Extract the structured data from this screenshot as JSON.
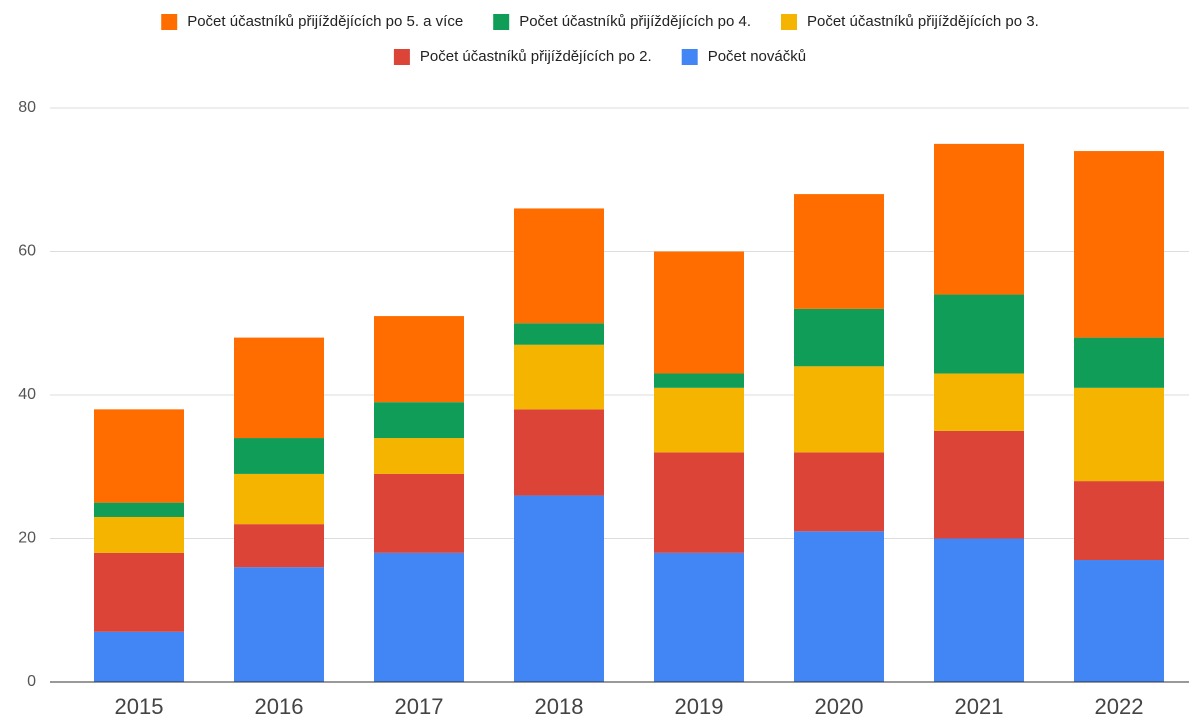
{
  "chart_data": {
    "type": "stacked_bar",
    "categories": [
      "2015",
      "2016",
      "2017",
      "2018",
      "2019",
      "2020",
      "2021",
      "2022"
    ],
    "series": [
      {
        "name": "Počet účastníků přijíždějících po 5. a více",
        "color": "#ff6d01",
        "values": [
          13,
          14,
          12,
          16,
          17,
          16,
          21,
          26
        ]
      },
      {
        "name": "Počet účastníků přijíždějících po 4.",
        "color": "#0f9d58",
        "values": [
          2,
          5,
          5,
          3,
          2,
          8,
          11,
          7
        ]
      },
      {
        "name": "Počet účastníků přijíždějících po 3.",
        "color": "#f4b400",
        "values": [
          5,
          7,
          5,
          9,
          9,
          12,
          8,
          13
        ]
      },
      {
        "name": "Počet účastníků přijíždějících po 2.",
        "color": "#db4437",
        "values": [
          11,
          6,
          11,
          12,
          14,
          11,
          15,
          11
        ]
      },
      {
        "name": "Počet nováčků",
        "color": "#4285f4",
        "values": [
          7,
          16,
          18,
          26,
          18,
          21,
          20,
          17
        ]
      }
    ],
    "ylim": [
      0,
      80
    ],
    "yticks": [
      0,
      20,
      40,
      60,
      80
    ],
    "grid": true,
    "legend": "top"
  }
}
